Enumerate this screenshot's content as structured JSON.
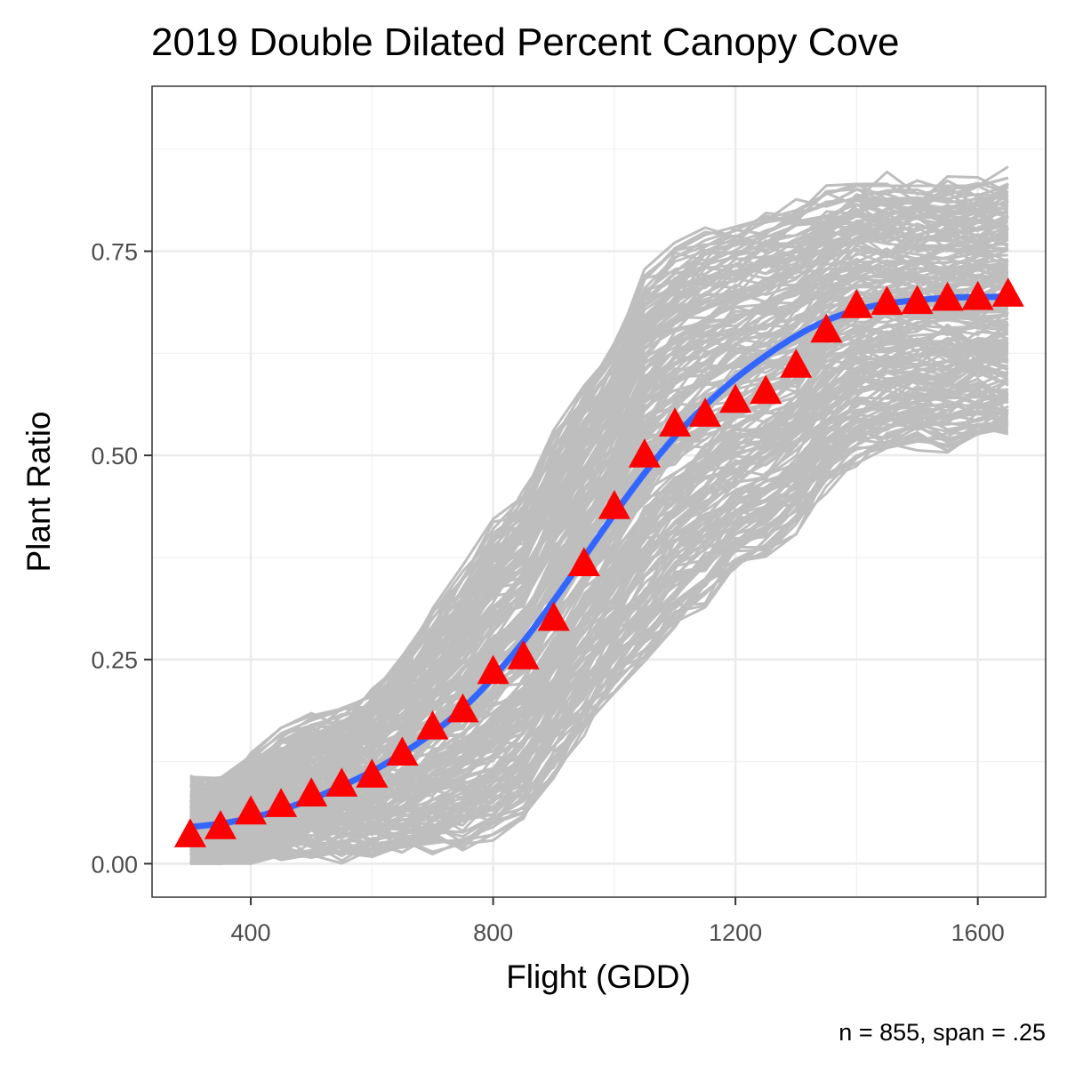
{
  "chart_data": {
    "type": "line",
    "title": "2019 Double Dilated Percent Canopy Cove",
    "xlabel": "Flight (GDD)",
    "ylabel": "Plant Ratio",
    "caption": "n = 855, span = .25",
    "xlim": [
      237,
      1712
    ],
    "ylim": [
      -0.041,
      0.952
    ],
    "x_ticks": [
      400,
      800,
      1200,
      1600
    ],
    "x_tick_labels": [
      "400",
      "800",
      "1200",
      "1600"
    ],
    "y_ticks": [
      0.0,
      0.25,
      0.5,
      0.75
    ],
    "y_tick_labels": [
      "0.00",
      "0.25",
      "0.50",
      "0.75"
    ],
    "grid": true,
    "legend": "none",
    "colors": {
      "individual_lines": "#bebebe",
      "smooth_line": "#3366ff",
      "mean_markers": "#ff0000",
      "grid_major": "#ebebeb",
      "grid_minor": "#f2f2f2",
      "panel_border": "#333333"
    },
    "x": [
      300,
      350,
      400,
      450,
      500,
      550,
      600,
      650,
      700,
      750,
      800,
      850,
      900,
      950,
      1000,
      1050,
      1100,
      1150,
      1200,
      1250,
      1300,
      1350,
      1400,
      1450,
      1500,
      1550,
      1600,
      1650
    ],
    "series": [
      {
        "role": "individual",
        "count": 855,
        "band_low": [
          0.002,
          0.004,
          0.008,
          0.012,
          0.014,
          0.015,
          0.016,
          0.02,
          0.025,
          0.03,
          0.045,
          0.07,
          0.12,
          0.17,
          0.22,
          0.26,
          0.3,
          0.33,
          0.37,
          0.39,
          0.42,
          0.47,
          0.5,
          0.51,
          0.52,
          0.52,
          0.53,
          0.53
        ],
        "band_high": [
          0.095,
          0.1,
          0.12,
          0.15,
          0.17,
          0.18,
          0.21,
          0.25,
          0.3,
          0.35,
          0.41,
          0.45,
          0.52,
          0.58,
          0.63,
          0.72,
          0.75,
          0.77,
          0.78,
          0.79,
          0.8,
          0.82,
          0.83,
          0.83,
          0.83,
          0.83,
          0.83,
          0.84
        ]
      },
      {
        "role": "smooth",
        "values": [
          0.045,
          0.049,
          0.056,
          0.066,
          0.079,
          0.095,
          0.113,
          0.135,
          0.16,
          0.19,
          0.228,
          0.272,
          0.322,
          0.375,
          0.428,
          0.478,
          0.523,
          0.561,
          0.594,
          0.622,
          0.646,
          0.665,
          0.678,
          0.686,
          0.69,
          0.693,
          0.694,
          0.694
        ]
      },
      {
        "role": "mean",
        "values": [
          0.035,
          0.045,
          0.063,
          0.072,
          0.085,
          0.097,
          0.108,
          0.135,
          0.167,
          0.188,
          0.235,
          0.253,
          0.3,
          0.367,
          0.437,
          0.5,
          0.538,
          0.55,
          0.567,
          0.578,
          0.61,
          0.653,
          0.683,
          0.687,
          0.688,
          0.692,
          0.693,
          0.697
        ]
      }
    ]
  }
}
